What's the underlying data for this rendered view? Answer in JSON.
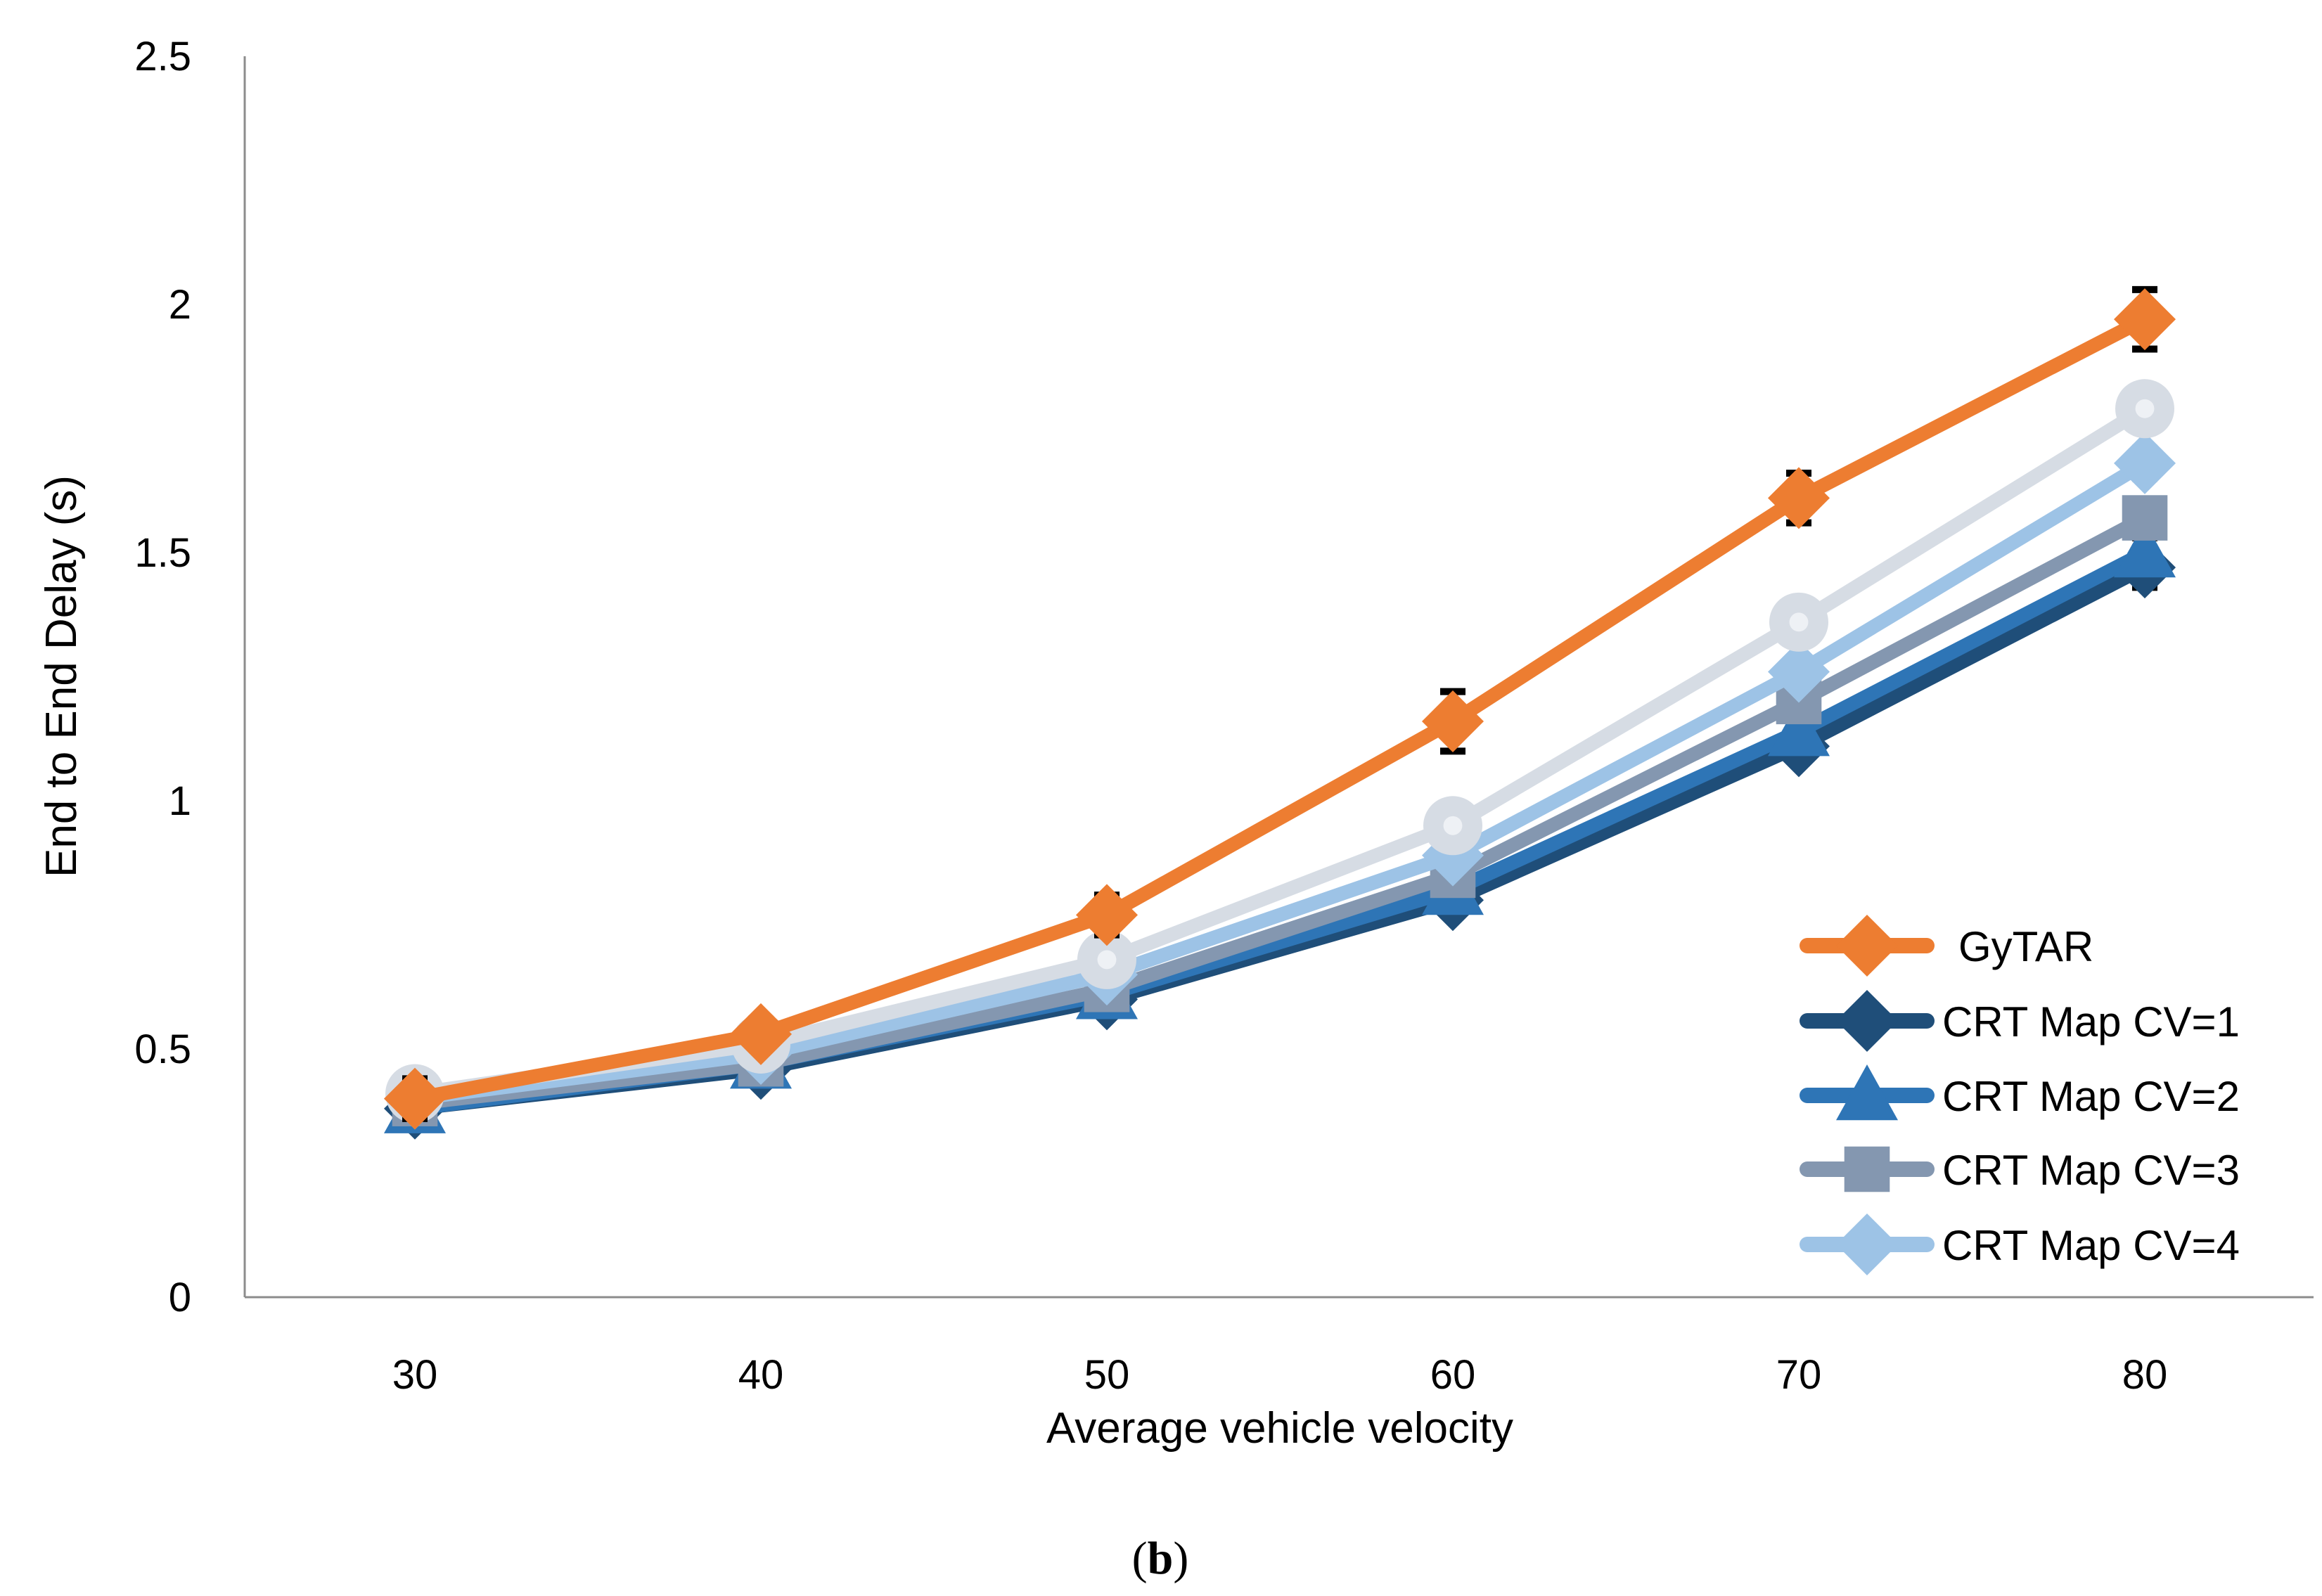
{
  "chart_data": {
    "type": "line",
    "title": "",
    "xlabel": "Average vehicle velocity",
    "ylabel": "End to End Delay (s)",
    "categories": [
      "30",
      "40",
      "50",
      "60",
      "70",
      "80"
    ],
    "yticks": [
      "0",
      "0.5",
      "1",
      "1.5",
      "2",
      "2.5"
    ],
    "ylim": [
      0,
      2.5
    ],
    "grid": false,
    "legend_position": "bottom-right",
    "series": [
      {
        "name": "CRT Map CV=1",
        "color": "#1f4e79",
        "marker": "diamond",
        "values": [
          0.38,
          0.46,
          0.6,
          0.8,
          1.11,
          1.47
        ],
        "error": [
          0.04,
          0.01,
          0.02,
          0.03,
          0.03,
          0.04
        ]
      },
      {
        "name": "CRT Map CV=2",
        "color": "#2e75b6",
        "marker": "triangle",
        "values": [
          0.38,
          0.47,
          0.61,
          0.82,
          1.14,
          1.5
        ],
        "error": [
          0.02,
          0.01,
          0.02,
          0.02,
          0.02,
          0.03
        ]
      },
      {
        "name": "CRT Map CV=3",
        "color": "#8497b0",
        "marker": "square",
        "values": [
          0.39,
          0.47,
          0.62,
          0.85,
          1.2,
          1.57
        ],
        "error": [
          0.02,
          0.01,
          0.02,
          0.02,
          0.02,
          0.03
        ]
      },
      {
        "name": "CRT Map CV=4",
        "color": "#9dc3e6",
        "marker": "diamond",
        "values": [
          0.4,
          0.49,
          0.65,
          0.89,
          1.26,
          1.68
        ],
        "error": [
          0.02,
          0.01,
          0.02,
          0.02,
          0.02,
          0.03
        ]
      },
      {
        "name": "",
        "color": "#d6dce4",
        "marker": "circle",
        "values": [
          0.41,
          0.51,
          0.68,
          0.95,
          1.36,
          1.79
        ],
        "error": [
          0.02,
          0.01,
          0.02,
          0.03,
          0.03,
          0.03
        ]
      },
      {
        "name": "GyTAR",
        "color": "#ed7d31",
        "marker": "diamond",
        "values": [
          0.4,
          0.53,
          0.77,
          1.16,
          1.61,
          1.97
        ],
        "error": [
          0.04,
          0.03,
          0.04,
          0.06,
          0.05,
          0.06
        ]
      }
    ],
    "legend": [
      "GyTAR",
      "CRT Map CV=1",
      "CRT Map CV=2",
      "CRT Map CV=3",
      "CRT Map CV=4"
    ]
  },
  "caption": "(b)"
}
